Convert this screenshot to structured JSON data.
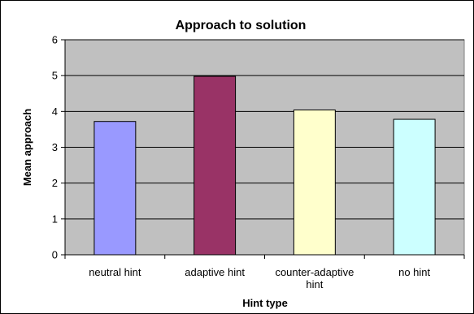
{
  "chart_data": {
    "type": "bar",
    "title": "Approach to solution",
    "xlabel": "Hint type",
    "ylabel": "Mean approach",
    "categories": [
      "neutral hint",
      "adaptive hint",
      "counter-adaptive hint",
      "no hint"
    ],
    "category_lines": [
      [
        "neutral hint"
      ],
      [
        "adaptive hint"
      ],
      [
        "counter-adaptive",
        "hint"
      ],
      [
        "no hint"
      ]
    ],
    "values": [
      3.72,
      4.98,
      4.04,
      3.78
    ],
    "bar_colors": [
      "#9999ff",
      "#993366",
      "#ffffcc",
      "#ccffff"
    ],
    "plot_background": "#c0c0c0",
    "ylim": [
      0,
      6
    ],
    "yticks": [
      "0",
      "1",
      "2",
      "3",
      "4",
      "5",
      "6"
    ],
    "grid": true,
    "legend": "none"
  }
}
